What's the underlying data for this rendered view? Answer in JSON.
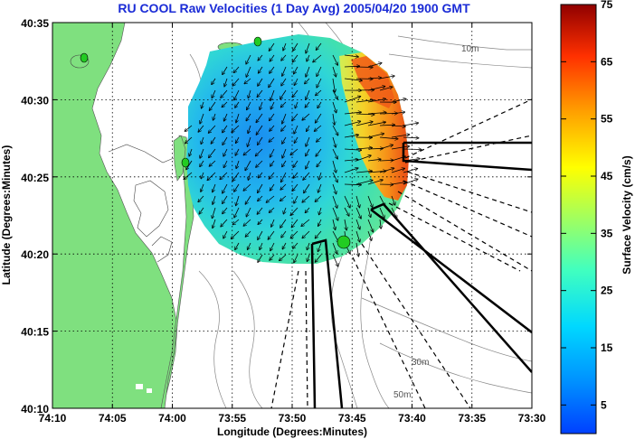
{
  "title": "RU COOL Raw Velocities (1 Day Avg) 2005/04/20 1900 GMT",
  "xlabel": "Longitude (Degrees:Minutes)",
  "ylabel": "Latitude (Degrees:Minutes)",
  "colorbar_label": "Surface Velocity (cm/s)",
  "x_ticks": [
    "74:10",
    "74:05",
    "74:00",
    "73:55",
    "73:50",
    "73:45",
    "73:40",
    "73:35",
    "73:30"
  ],
  "y_ticks": [
    "40:35",
    "40:30",
    "40:25",
    "40:20",
    "40:15",
    "40:10"
  ],
  "colorbar_ticks": [
    "75",
    "65",
    "55",
    "45",
    "35",
    "25",
    "15",
    "5"
  ],
  "contour_labels": [
    "10m",
    "30m",
    "50m"
  ],
  "colors": {
    "land": "#7fe07f",
    "grid": "#000000",
    "title": "#1a2bd6"
  },
  "chart_data": {
    "type": "heatmap",
    "title": "RU COOL Raw Velocities (1 Day Avg) 2005/04/20 1900 GMT",
    "xlabel": "Longitude (Degrees:Minutes)",
    "ylabel": "Latitude (Degrees:Minutes)",
    "xlim": [
      "74:10",
      "73:30"
    ],
    "ylim": [
      "40:10",
      "40:35"
    ],
    "colorbar": {
      "label": "Surface Velocity (cm/s)",
      "range": [
        0,
        75
      ],
      "ticks": [
        5,
        15,
        25,
        35,
        45,
        55,
        65,
        75
      ]
    },
    "grid": true
  }
}
